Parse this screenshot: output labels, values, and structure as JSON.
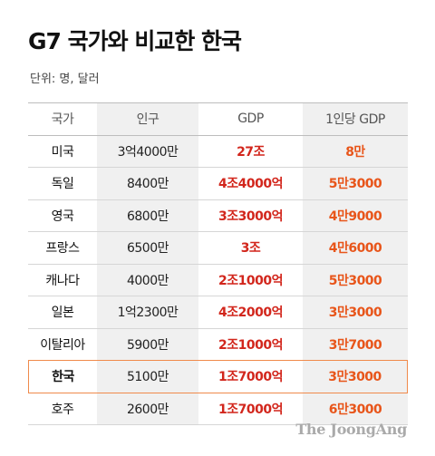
{
  "title": "G7 국가와 비교한 한국",
  "unit": "단위: 명, 달러",
  "chart_data": {
    "type": "table",
    "title": "G7 국가와 비교한 한국",
    "columns": [
      "국가",
      "인구",
      "GDP",
      "1인당 GDP"
    ],
    "rows": [
      {
        "country": "미국",
        "population": "3억4000만",
        "gdp": "27조",
        "gdp_per_capita": "8만"
      },
      {
        "country": "독일",
        "population": "8400만",
        "gdp": "4조4000억",
        "gdp_per_capita": "5만3000"
      },
      {
        "country": "영국",
        "population": "6800만",
        "gdp": "3조3000억",
        "gdp_per_capita": "4만9000"
      },
      {
        "country": "프랑스",
        "population": "6500만",
        "gdp": "3조",
        "gdp_per_capita": "4만6000"
      },
      {
        "country": "캐나다",
        "population": "4000만",
        "gdp": "2조1000억",
        "gdp_per_capita": "5만3000"
      },
      {
        "country": "일본",
        "population": "1억2300만",
        "gdp": "4조2000억",
        "gdp_per_capita": "3만3000"
      },
      {
        "country": "이탈리아",
        "population": "5900만",
        "gdp": "2조1000억",
        "gdp_per_capita": "3만7000"
      },
      {
        "country": "한국",
        "population": "5100만",
        "gdp": "1조7000억",
        "gdp_per_capita": "3만3000",
        "highlight": true
      },
      {
        "country": "호주",
        "population": "2600만",
        "gdp": "1조7000억",
        "gdp_per_capita": "6만3000"
      }
    ]
  },
  "source_logo": "The JoongAng",
  "colors": {
    "gdp_text": "#d2261c",
    "per_capita_text": "#e8551a",
    "highlight_border": "#f08a4b",
    "shade": "#f0f0f0"
  }
}
